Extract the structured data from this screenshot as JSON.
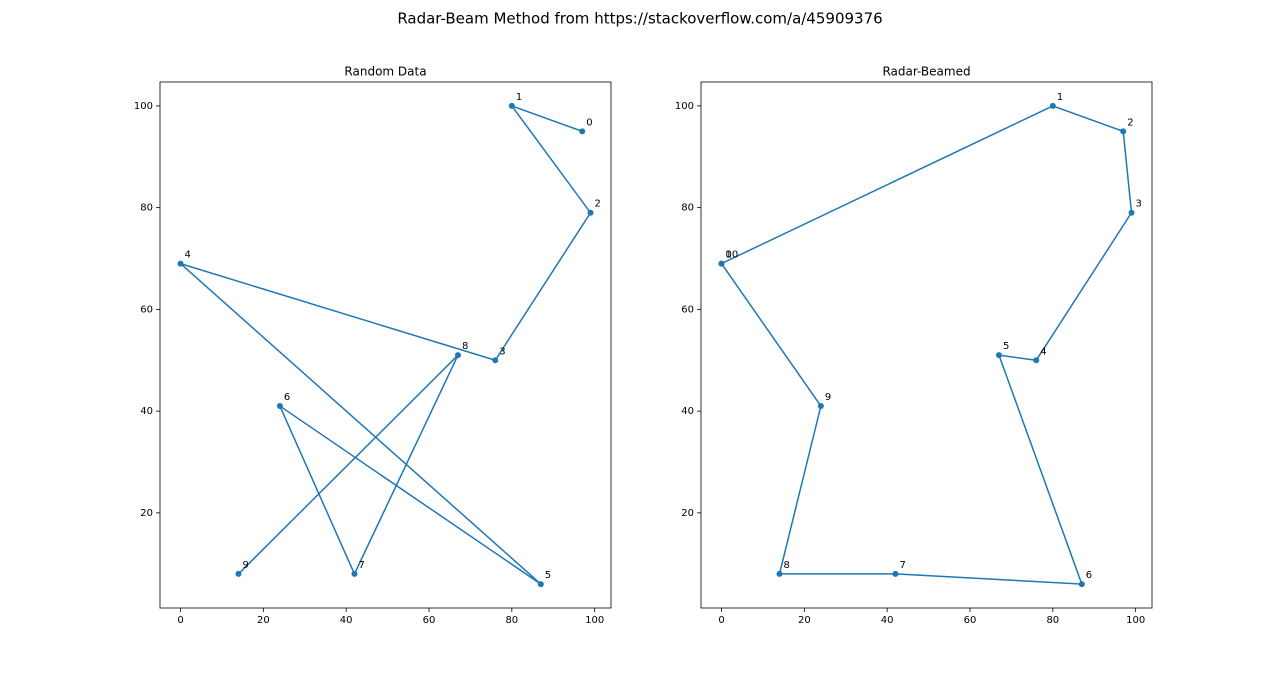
{
  "title": "Radar-Beam Method from https://stackoverflow.com/a/45909376",
  "chart_data": [
    {
      "type": "line",
      "title": "Random Data",
      "x": [
        97,
        80,
        99,
        76,
        0,
        87,
        24,
        42,
        67,
        14
      ],
      "values": [
        95,
        100,
        79,
        50,
        69,
        6,
        41,
        8,
        51,
        8
      ],
      "point_labels": [
        "0",
        "1",
        "2",
        "3",
        "4",
        "5",
        "6",
        "7",
        "8",
        "9"
      ],
      "color": "#1f77b4",
      "xlim": [
        -4.95,
        103.95
      ],
      "ylim": [
        1.3,
        104.7
      ],
      "xticks": [
        0,
        20,
        40,
        60,
        80,
        100
      ],
      "yticks": [
        20,
        40,
        60,
        80,
        100
      ]
    },
    {
      "type": "line",
      "title": "Radar-Beamed",
      "x": [
        0,
        80,
        97,
        99,
        76,
        67,
        87,
        42,
        14,
        24,
        0
      ],
      "values": [
        69,
        100,
        95,
        79,
        50,
        51,
        6,
        8,
        8,
        41,
        69
      ],
      "point_labels": [
        "0",
        "1",
        "2",
        "3",
        "4",
        "5",
        "6",
        "7",
        "8",
        "9",
        "10"
      ],
      "color": "#1f77b4",
      "xlim": [
        -4.95,
        103.95
      ],
      "ylim": [
        1.3,
        104.7
      ],
      "xticks": [
        0,
        20,
        40,
        60,
        80,
        100
      ],
      "yticks": [
        20,
        40,
        60,
        80,
        100
      ]
    }
  ]
}
